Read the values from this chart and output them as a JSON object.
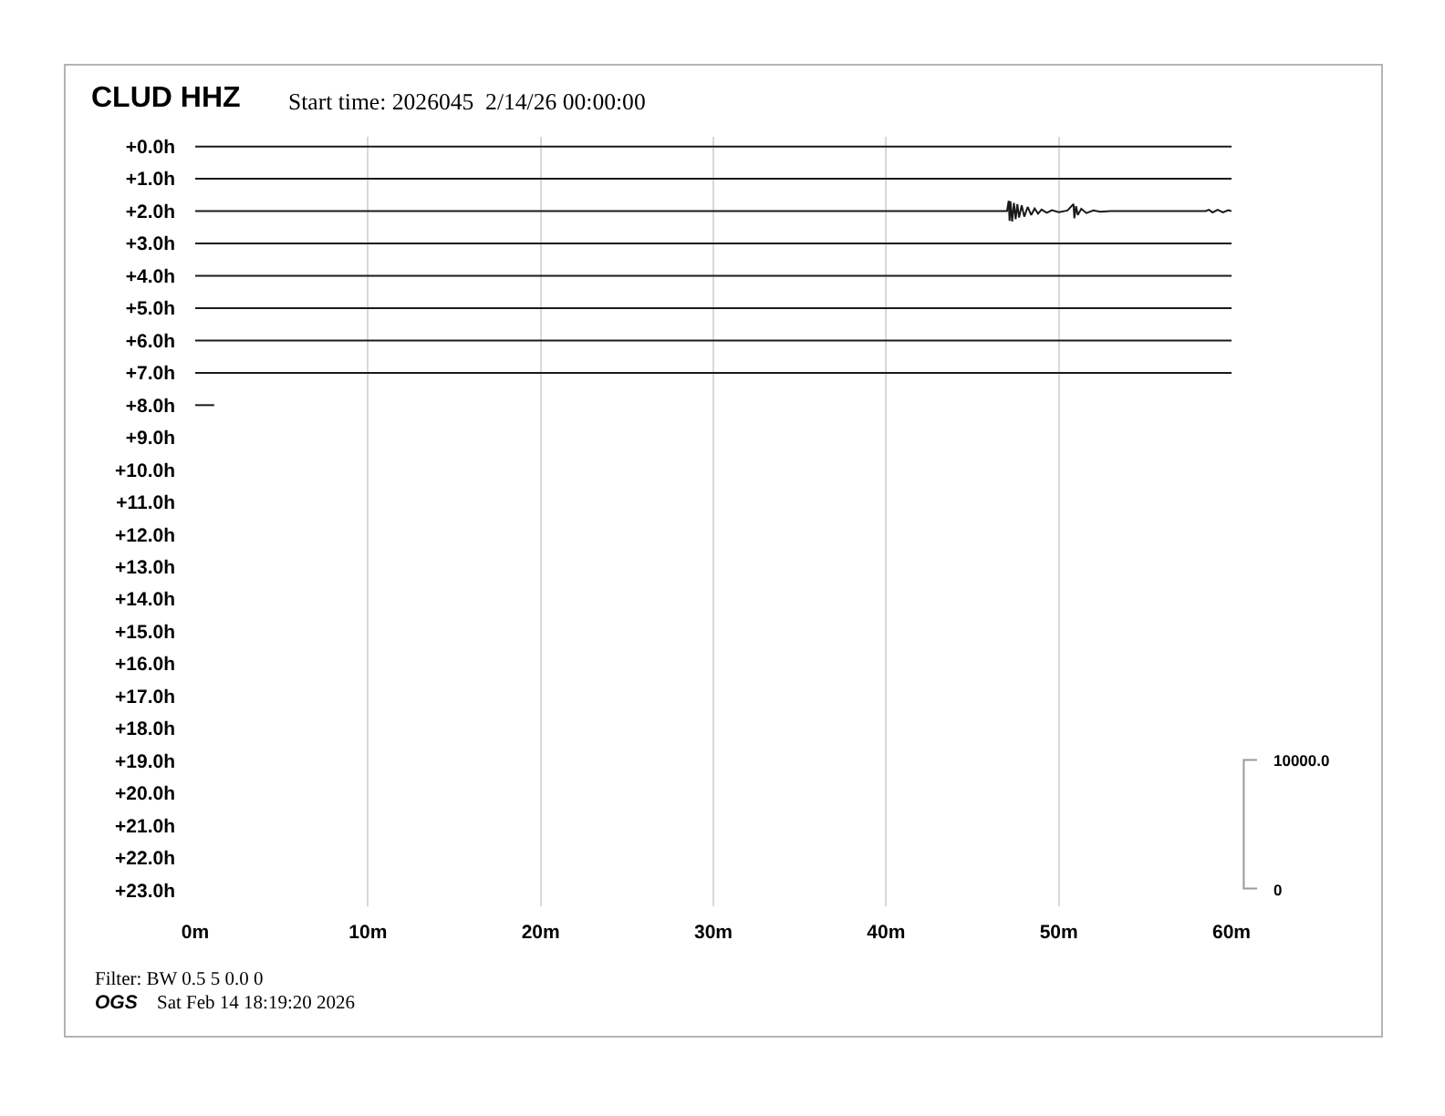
{
  "chart_data": {
    "type": "line",
    "title": "CLUD HHZ",
    "subtitle": "Start time: 2026045  2/14/26 00:00:00",
    "annotations": [
      "Filter: BW 0.5 5 0.0 0",
      "OGS",
      "Sat Feb 14 18:19:20 2026",
      "10000.0",
      "0"
    ],
    "x": [
      0,
      60
    ],
    "series": [
      {
        "color": "#1a1a1a",
        "values": [
          0,
          0
        ]
      },
      {
        "color": "#1a1a1a",
        "values": [
          1,
          1
        ]
      },
      {
        "color": "#1a1a1a",
        "x": [
          0,
          47.0,
          47.1,
          47.15,
          47.2,
          47.3,
          47.4,
          47.5,
          47.6,
          47.7,
          47.85,
          48.0,
          48.2,
          48.4,
          48.6,
          48.8,
          49.0,
          49.3,
          49.6,
          50.0,
          50.5,
          50.85,
          50.9,
          51.0,
          51.1,
          51.3,
          51.6,
          52.0,
          52.4,
          53.0,
          58.5,
          58.7,
          58.9,
          59.2,
          59.5,
          59.8,
          60
        ],
        "values": [
          2,
          2,
          1.68,
          2.3,
          1.7,
          2.32,
          1.75,
          2.25,
          1.78,
          2.2,
          1.82,
          2.17,
          1.87,
          2.12,
          1.92,
          2.08,
          1.95,
          2.05,
          1.97,
          2.03,
          1.98,
          1.78,
          2.22,
          1.85,
          2.12,
          1.93,
          2.06,
          1.98,
          2.02,
          2,
          2,
          1.96,
          2.04,
          1.96,
          2.04,
          1.97,
          2
        ]
      },
      {
        "color": "#1a1a1a",
        "values": [
          3,
          3
        ]
      },
      {
        "color": "#1a1a1a",
        "values": [
          4,
          4
        ]
      },
      {
        "color": "#1a1a1a",
        "values": [
          5,
          5
        ]
      },
      {
        "color": "#1a1a1a",
        "values": [
          6,
          6
        ]
      },
      {
        "color": "#1a1a1a",
        "values": [
          7,
          7
        ]
      },
      {
        "color": "#1a1a1a",
        "x": [
          0,
          1.1
        ],
        "values": [
          8,
          8
        ]
      }
    ],
    "xlim": [
      0,
      60
    ],
    "xticks": [
      {
        "value": 0,
        "label": "0m"
      },
      {
        "value": 10,
        "label": "10m"
      },
      {
        "value": 20,
        "label": "20m"
      },
      {
        "value": 30,
        "label": "30m"
      },
      {
        "value": 40,
        "label": "40m"
      },
      {
        "value": 50,
        "label": "50m"
      },
      {
        "value": 60,
        "label": "60m"
      }
    ],
    "ylim": [
      23.5,
      -0.3
    ],
    "yticks": [
      {
        "value": 0,
        "label": "+0.0h"
      },
      {
        "value": 1,
        "label": "+1.0h"
      },
      {
        "value": 2,
        "label": "+2.0h"
      },
      {
        "value": 3,
        "label": "+3.0h"
      },
      {
        "value": 4,
        "label": "+4.0h"
      },
      {
        "value": 5,
        "label": "+5.0h"
      },
      {
        "value": 6,
        "label": "+6.0h"
      },
      {
        "value": 7,
        "label": "+7.0h"
      },
      {
        "value": 8,
        "label": "+8.0h"
      },
      {
        "value": 9,
        "label": "+9.0h"
      },
      {
        "value": 10,
        "label": "+10.0h"
      },
      {
        "value": 11,
        "label": "+11.0h"
      },
      {
        "value": 12,
        "label": "+12.0h"
      },
      {
        "value": 13,
        "label": "+13.0h"
      },
      {
        "value": 14,
        "label": "+14.0h"
      },
      {
        "value": 15,
        "label": "+15.0h"
      },
      {
        "value": 16,
        "label": "+16.0h"
      },
      {
        "value": 17,
        "label": "+17.0h"
      },
      {
        "value": 18,
        "label": "+18.0h"
      },
      {
        "value": 19,
        "label": "+19.0h"
      },
      {
        "value": 20,
        "label": "+20.0h"
      },
      {
        "value": 21,
        "label": "+21.0h"
      },
      {
        "value": 22,
        "label": "+22.0h"
      },
      {
        "value": 23,
        "label": "+23.0h"
      }
    ],
    "grid": "x"
  }
}
